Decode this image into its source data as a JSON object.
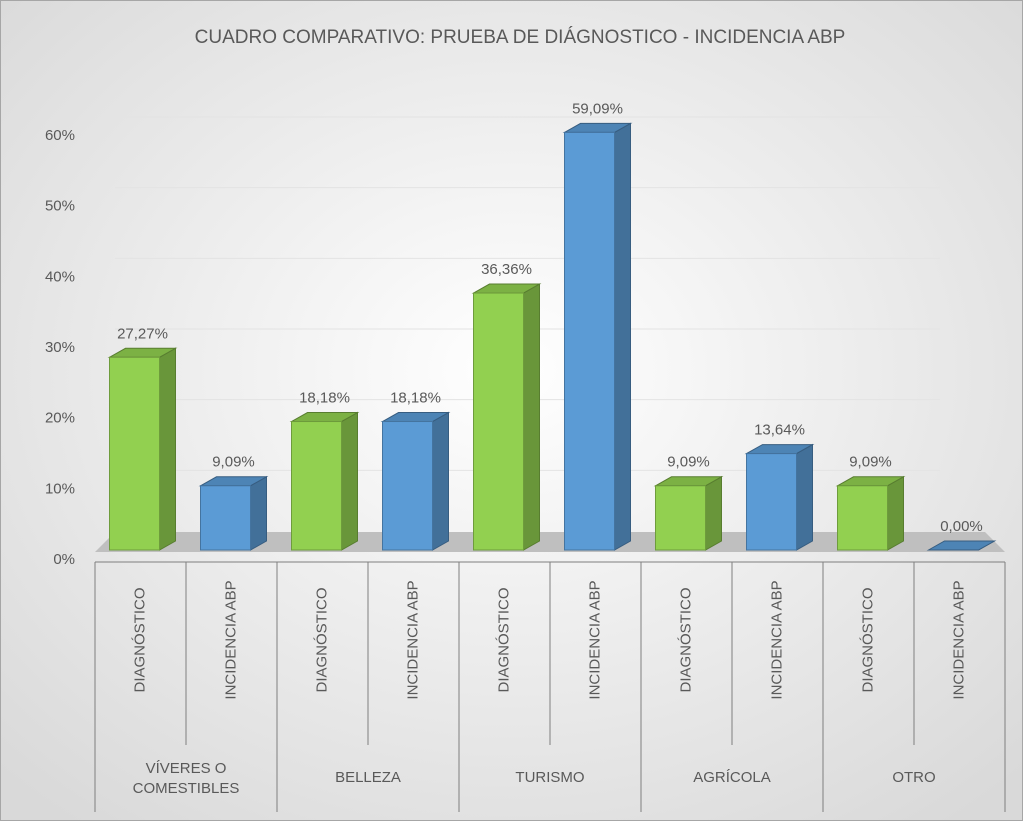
{
  "chart_data": {
    "type": "bar",
    "title": "CUADRO COMPARATIVO: PRUEBA DE DIÁGNOSTICO - INCIDENCIA ABP",
    "categories": [
      "VÍVERES O COMESTIBLES",
      "BELLEZA",
      "TURISMO",
      "AGRÍCOLA",
      "OTRO"
    ],
    "series": [
      {
        "name": "DIAGNÓSTICO",
        "color": "#92d050",
        "values": [
          27.27,
          18.18,
          36.36,
          9.09,
          9.09
        ],
        "value_labels": [
          "27,27%",
          "18,18%",
          "36,36%",
          "9,09%",
          "9,09%"
        ]
      },
      {
        "name": "INCIDENCIA ABP",
        "color": "#5b9bd5",
        "values": [
          9.09,
          18.18,
          59.09,
          13.64,
          0
        ],
        "value_labels": [
          "9,09%",
          "18,18%",
          "59,09%",
          "13,64%",
          "0,00%"
        ]
      }
    ],
    "ylim": [
      0,
      60
    ],
    "yticks": [
      {
        "value": 0,
        "label": "0%"
      },
      {
        "value": 10,
        "label": "10%"
      },
      {
        "value": 20,
        "label": "20%"
      },
      {
        "value": 30,
        "label": "30%"
      },
      {
        "value": 40,
        "label": "40%"
      },
      {
        "value": 50,
        "label": "50%"
      },
      {
        "value": 60,
        "label": "60%"
      }
    ],
    "grid": true
  }
}
